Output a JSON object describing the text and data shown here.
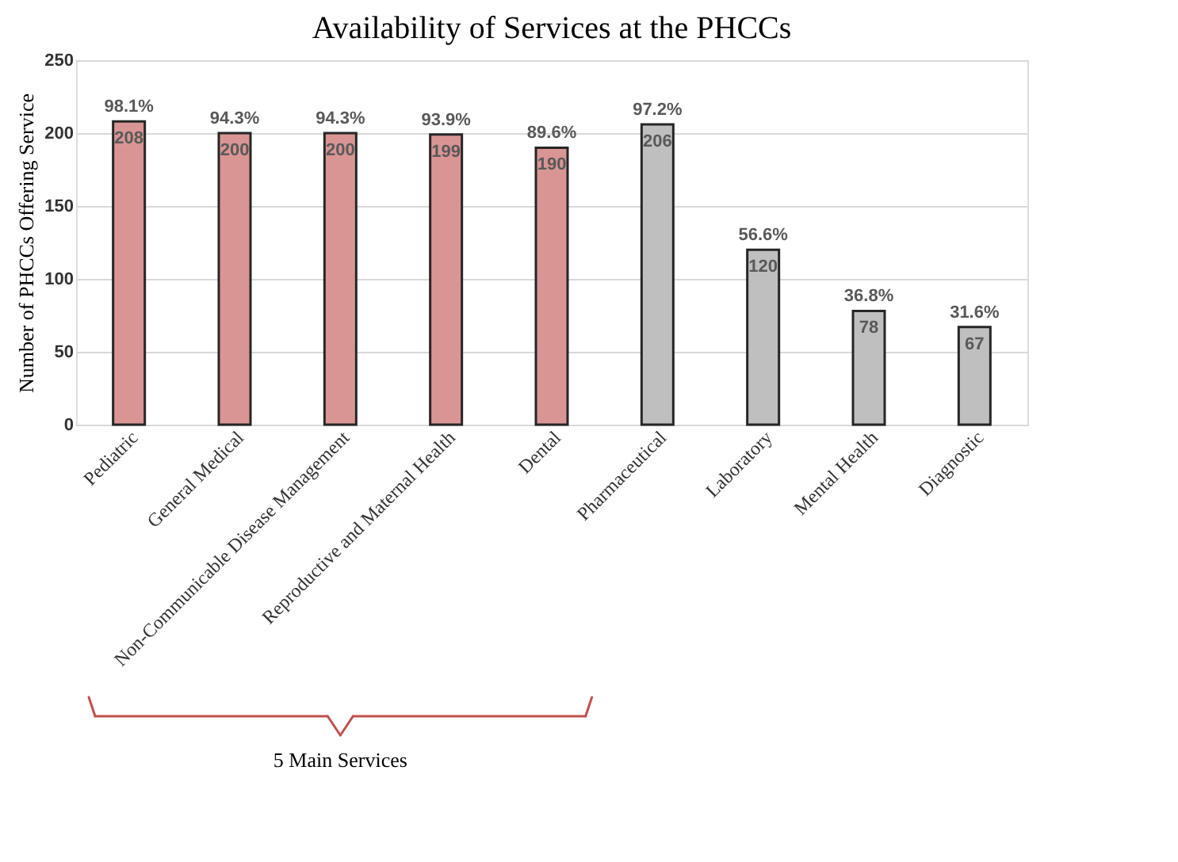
{
  "chart_data": {
    "type": "bar",
    "title": "Availability of Services at the PHCCs",
    "ylabel": "Number of PHCCs Offering Service",
    "categories": [
      "Pediatric",
      "General Medical",
      "Non-Communicable Disease Management",
      "Reproductive and Maternal Health",
      "Dental",
      "Pharmaceutical",
      "Laboratory",
      "Mental Health",
      "Diagnostic"
    ],
    "values": [
      208,
      200,
      200,
      199,
      190,
      206,
      120,
      78,
      67
    ],
    "colors": [
      "#d99594",
      "#d99594",
      "#d99594",
      "#d99594",
      "#d99594",
      "#bfbfbf",
      "#bfbfbf",
      "#bfbfbf",
      "#bfbfbf"
    ],
    "ylim": [
      0,
      250
    ],
    "yticks": [
      0,
      50,
      100,
      150,
      200,
      250
    ],
    "grid": "y",
    "data_labels": true,
    "annotations": [
      {
        "text": "98.1%",
        "x": "Pediatric",
        "y": 208
      },
      {
        "text": "94.3%",
        "x": "General Medical",
        "y": 200
      },
      {
        "text": "94.3%",
        "x": "Non-Communicable Disease Management",
        "y": 200
      },
      {
        "text": "93.9%",
        "x": "Reproductive and Maternal Health",
        "y": 199
      },
      {
        "text": "89.6%",
        "x": "Dental",
        "y": 190
      },
      {
        "text": "97.2%",
        "x": "Pharmaceutical",
        "y": 206
      },
      {
        "text": "56.6%",
        "x": "Laboratory",
        "y": 120
      },
      {
        "text": "36.8%",
        "x": "Mental Health",
        "y": 78
      },
      {
        "text": "31.6%",
        "x": "Diagnostic",
        "y": 67
      },
      "5 Main Services"
    ]
  }
}
